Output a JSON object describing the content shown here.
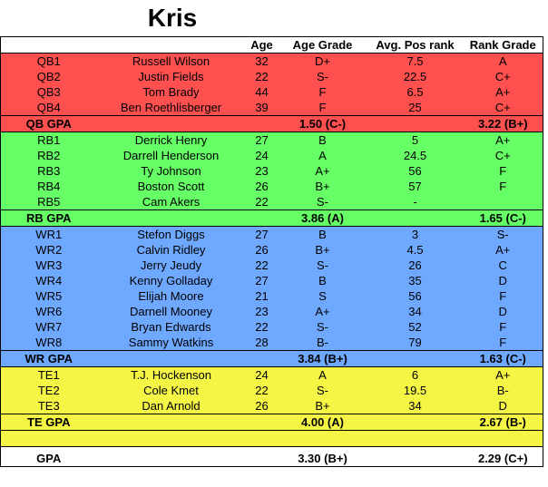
{
  "title": "Kris",
  "headers": [
    "",
    "",
    "Age",
    "Age Grade",
    "Avg. Pos rank",
    "Rank Grade"
  ],
  "groups": [
    {
      "color": "#ff5050",
      "cls": "red",
      "rows": [
        [
          "QB1",
          "Russell Wilson",
          "32",
          "D+",
          "7.5",
          "A"
        ],
        [
          "QB2",
          "Justin Fields",
          "22",
          "S-",
          "22.5",
          "C+"
        ],
        [
          "QB3",
          "Tom Brady",
          "44",
          "F",
          "6.5",
          "A+"
        ],
        [
          "QB4",
          "Ben Roethlisberger",
          "39",
          "F",
          "25",
          "C+"
        ]
      ],
      "gpa": {
        "label": "QB GPA",
        "age": "1.50 (C-)",
        "rank": "3.22 (B+)"
      }
    },
    {
      "color": "#66ff66",
      "cls": "green",
      "rows": [
        [
          "RB1",
          "Derrick Henry",
          "27",
          "B",
          "5",
          "A+"
        ],
        [
          "RB2",
          "Darrell Henderson",
          "24",
          "A",
          "24.5",
          "C+"
        ],
        [
          "RB3",
          "Ty Johnson",
          "23",
          "A+",
          "56",
          "F"
        ],
        [
          "RB4",
          "Boston Scott",
          "26",
          "B+",
          "57",
          "F"
        ],
        [
          "RB5",
          "Cam Akers",
          "22",
          "S-",
          "-",
          ""
        ]
      ],
      "gpa": {
        "label": "RB GPA",
        "age": "3.86 (A)",
        "rank": "1.65 (C-)"
      }
    },
    {
      "color": "#6fa8ff",
      "cls": "blue",
      "rows": [
        [
          "WR1",
          "Stefon Diggs",
          "27",
          "B",
          "3",
          "S-"
        ],
        [
          "WR2",
          "Calvin Ridley",
          "26",
          "B+",
          "4.5",
          "A+"
        ],
        [
          "WR3",
          "Jerry Jeudy",
          "22",
          "S-",
          "26",
          "C"
        ],
        [
          "WR4",
          "Kenny Golladay",
          "27",
          "B",
          "35",
          "D"
        ],
        [
          "WR5",
          "Elijah Moore",
          "21",
          "S",
          "56",
          "F"
        ],
        [
          "WR6",
          "Darnell Mooney",
          "23",
          "A+",
          "34",
          "D"
        ],
        [
          "WR7",
          "Bryan Edwards",
          "22",
          "S-",
          "52",
          "F"
        ],
        [
          "WR8",
          "Sammy Watkins",
          "28",
          "B-",
          "79",
          "F"
        ]
      ],
      "gpa": {
        "label": "WR GPA",
        "age": "3.84 (B+)",
        "rank": "1.63 (C-)"
      }
    },
    {
      "color": "#f5f545",
      "cls": "yellow",
      "rows": [
        [
          "TE1",
          "T.J. Hockenson",
          "24",
          "A",
          "6",
          "A+"
        ],
        [
          "TE2",
          "Cole Kmet",
          "22",
          "S-",
          "19.5",
          "B-"
        ],
        [
          "TE3",
          "Dan Arnold",
          "26",
          "B+",
          "34",
          "D"
        ]
      ],
      "gpa": {
        "label": "TE GPA",
        "age": "4.00 (A)",
        "rank": "2.67 (B-)"
      }
    }
  ],
  "final": {
    "label": "GPA",
    "age": "3.30 (B+)",
    "rank": "2.29 (C+)"
  }
}
